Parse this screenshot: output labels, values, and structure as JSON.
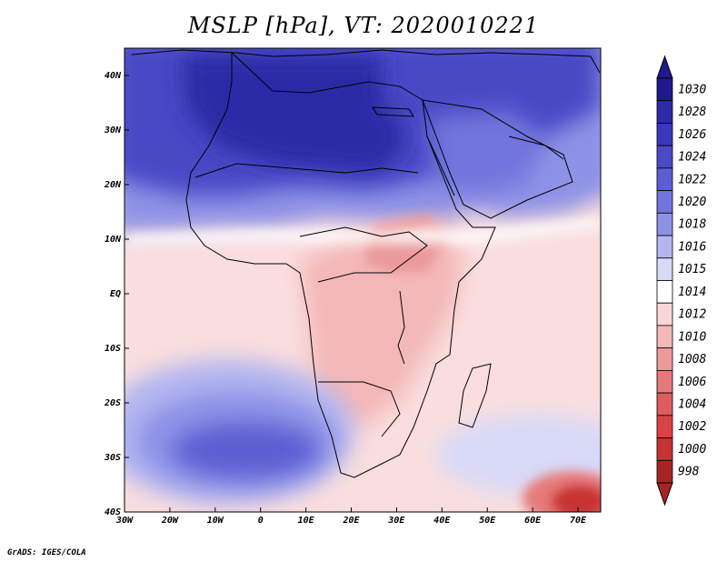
{
  "title": "MSLP [hPa], VT: 2020010221",
  "credit": "GrADS: IGES/COLA",
  "map": {
    "lon_range": [
      -30,
      75
    ],
    "lat_range": [
      -40,
      45
    ],
    "lat_ticks": [
      {
        "value": 40,
        "label": "40N"
      },
      {
        "value": 30,
        "label": "30N"
      },
      {
        "value": 20,
        "label": "20N"
      },
      {
        "value": 10,
        "label": "10N"
      },
      {
        "value": 0,
        "label": "EQ"
      },
      {
        "value": -10,
        "label": "10S"
      },
      {
        "value": -20,
        "label": "20S"
      },
      {
        "value": -30,
        "label": "30S"
      },
      {
        "value": -40,
        "label": "40S"
      }
    ],
    "lon_ticks": [
      {
        "value": -30,
        "label": "30W"
      },
      {
        "value": -20,
        "label": "20W"
      },
      {
        "value": -10,
        "label": "10W"
      },
      {
        "value": 0,
        "label": "0"
      },
      {
        "value": 10,
        "label": "10E"
      },
      {
        "value": 20,
        "label": "20E"
      },
      {
        "value": 30,
        "label": "30E"
      },
      {
        "value": 40,
        "label": "40E"
      },
      {
        "value": 50,
        "label": "50E"
      },
      {
        "value": 60,
        "label": "60E"
      },
      {
        "value": 70,
        "label": "70E"
      }
    ]
  },
  "colorbar": {
    "levels": [
      {
        "label": "1030",
        "color": "#1e1a8c"
      },
      {
        "label": "1028",
        "color": "#2c2aa6"
      },
      {
        "label": "1026",
        "color": "#3a38b8"
      },
      {
        "label": "1024",
        "color": "#4a4ac6"
      },
      {
        "label": "1022",
        "color": "#5c5fd2"
      },
      {
        "label": "1020",
        "color": "#7275dc"
      },
      {
        "label": "1018",
        "color": "#8e92e6"
      },
      {
        "label": "1016",
        "color": "#b3b6f0"
      },
      {
        "label": "1015",
        "color": "#d8daf8"
      },
      {
        "label": "1014",
        "color": "#ffffff"
      },
      {
        "label": "1012",
        "color": "#fbd6d6"
      },
      {
        "label": "1010",
        "color": "#f4b8b8"
      },
      {
        "label": "1008",
        "color": "#ec9a9a"
      },
      {
        "label": "1006",
        "color": "#e67a7a"
      },
      {
        "label": "1004",
        "color": "#e05c5c"
      },
      {
        "label": "1002",
        "color": "#d84444"
      },
      {
        "label": "1000",
        "color": "#c83232"
      },
      {
        "label": "998",
        "color": "#a82424"
      }
    ]
  },
  "colors": {
    "high": "#3a38b8",
    "neutral": "#ffffff",
    "low": "#e67a7a",
    "coast": "#000000"
  }
}
